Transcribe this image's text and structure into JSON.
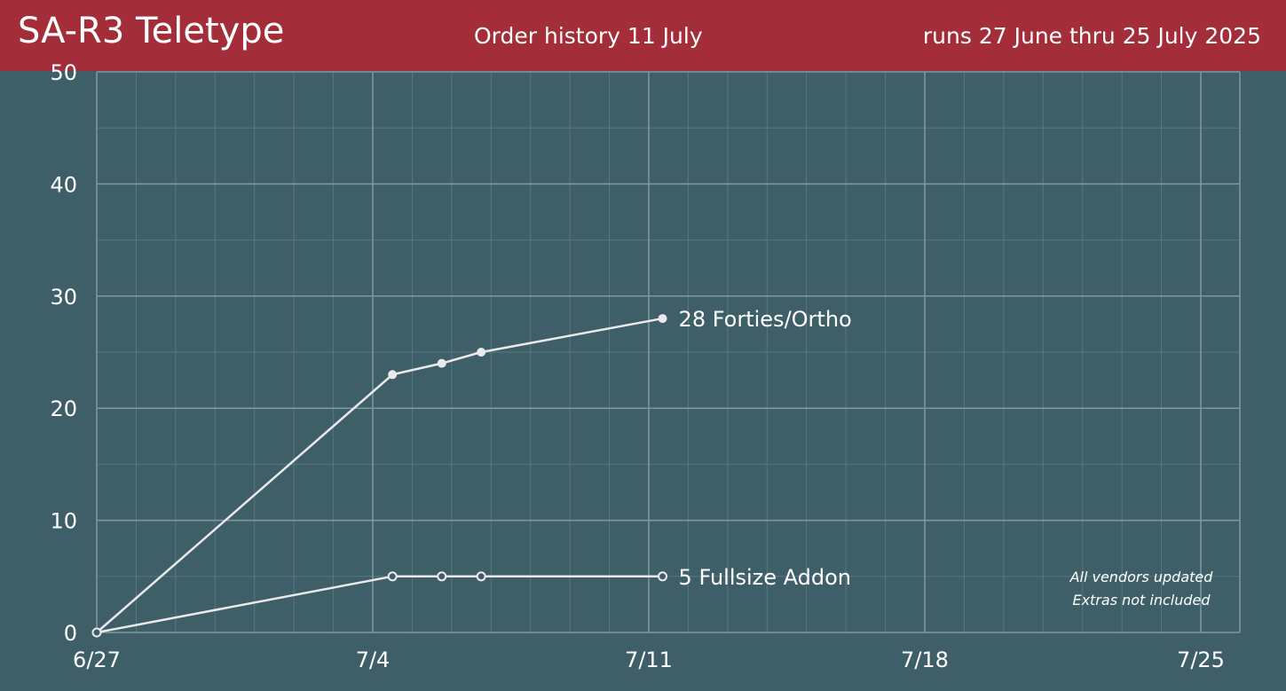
{
  "header": {
    "title": "SA-R3 Teletype",
    "subtitle": "Order history 11 July",
    "run_range": "runs 27 June thru 25 July 2025"
  },
  "colors": {
    "background": "#3f5f68",
    "header": "#a32d38",
    "grid_major": "#7e9aa0",
    "grid_minor": "#587880",
    "line": "#ece9ee"
  },
  "notes": [
    "All vendors updated",
    "Extras not included"
  ],
  "chart_data": {
    "type": "line",
    "title": "",
    "xlabel": "",
    "ylabel": "",
    "x_start": "6/27",
    "x_end": "7/25",
    "xlim_days": [
      0,
      29
    ],
    "ylim": [
      0,
      50
    ],
    "x_ticks": [
      {
        "label": "6/27",
        "day": 0
      },
      {
        "label": "7/4",
        "day": 7
      },
      {
        "label": "7/11",
        "day": 14
      },
      {
        "label": "7/18",
        "day": 21
      },
      {
        "label": "7/25",
        "day": 28
      }
    ],
    "y_ticks": [
      0,
      10,
      20,
      30,
      40,
      50
    ],
    "grid": true,
    "series": [
      {
        "name": "Forties/Ortho",
        "end_label": "28 Forties/Ortho",
        "marker": "filled",
        "points": [
          {
            "date": "6/27",
            "day": 0,
            "value": 0
          },
          {
            "date": "7/4",
            "day": 7.5,
            "value": 23
          },
          {
            "date": "7/5",
            "day": 8.75,
            "value": 24
          },
          {
            "date": "7/6",
            "day": 9.75,
            "value": 25
          },
          {
            "date": "7/11",
            "day": 14.35,
            "value": 28
          }
        ]
      },
      {
        "name": "Fullsize Addon",
        "end_label": "5 Fullsize Addon",
        "marker": "hollow",
        "points": [
          {
            "date": "6/27",
            "day": 0,
            "value": 0
          },
          {
            "date": "7/4",
            "day": 7.5,
            "value": 5
          },
          {
            "date": "7/5",
            "day": 8.75,
            "value": 5
          },
          {
            "date": "7/6",
            "day": 9.75,
            "value": 5
          },
          {
            "date": "7/11",
            "day": 14.35,
            "value": 5
          }
        ]
      }
    ]
  }
}
